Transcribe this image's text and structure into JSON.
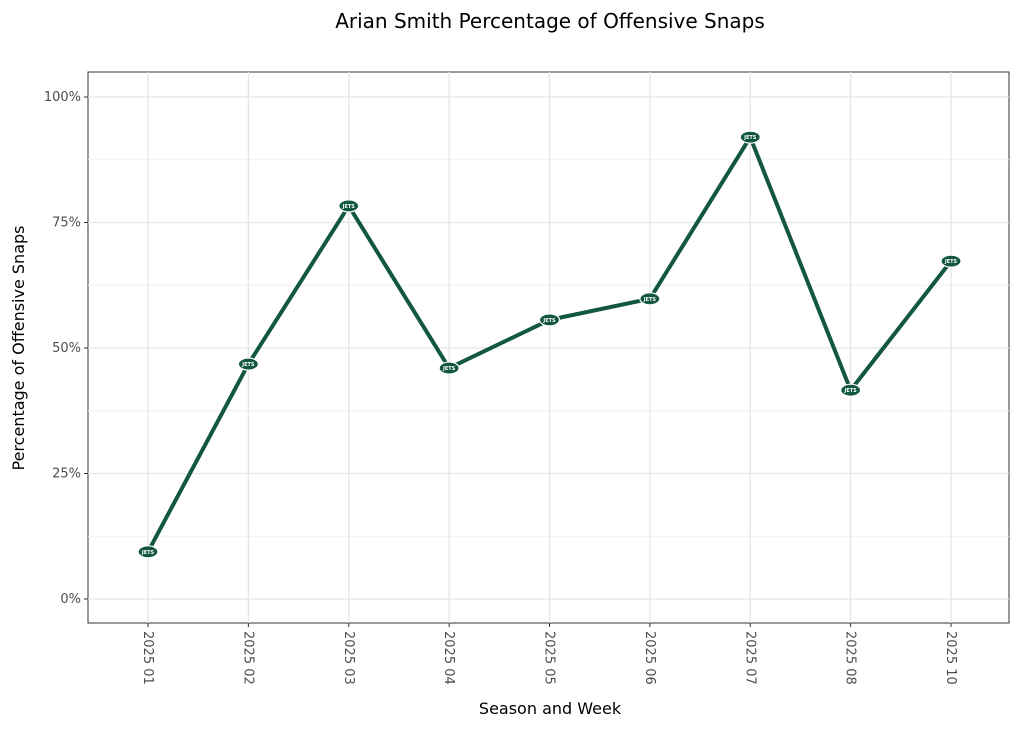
{
  "chart_data": {
    "type": "line",
    "title": "Arian Smith Percentage of Offensive Snaps",
    "xlabel": "Season and Week",
    "ylabel": "Percentage of Offensive Snaps",
    "categories": [
      "2025 01",
      "2025 02",
      "2025 03",
      "2025 04",
      "2025 05",
      "2025 06",
      "2025 07",
      "2025 08",
      "2025 10"
    ],
    "values": [
      9.4,
      46.8,
      78.3,
      46.0,
      55.6,
      59.8,
      92.0,
      41.6,
      67.3
    ],
    "ylim": [
      -5,
      105
    ],
    "yticks": [
      0,
      25,
      50,
      75,
      100
    ],
    "ytick_labels": [
      "0%",
      "25%",
      "50%",
      "75%",
      "100%"
    ],
    "grid": true,
    "marker": "team-logo",
    "marker_text": "JETS",
    "line_color": "#125740"
  }
}
